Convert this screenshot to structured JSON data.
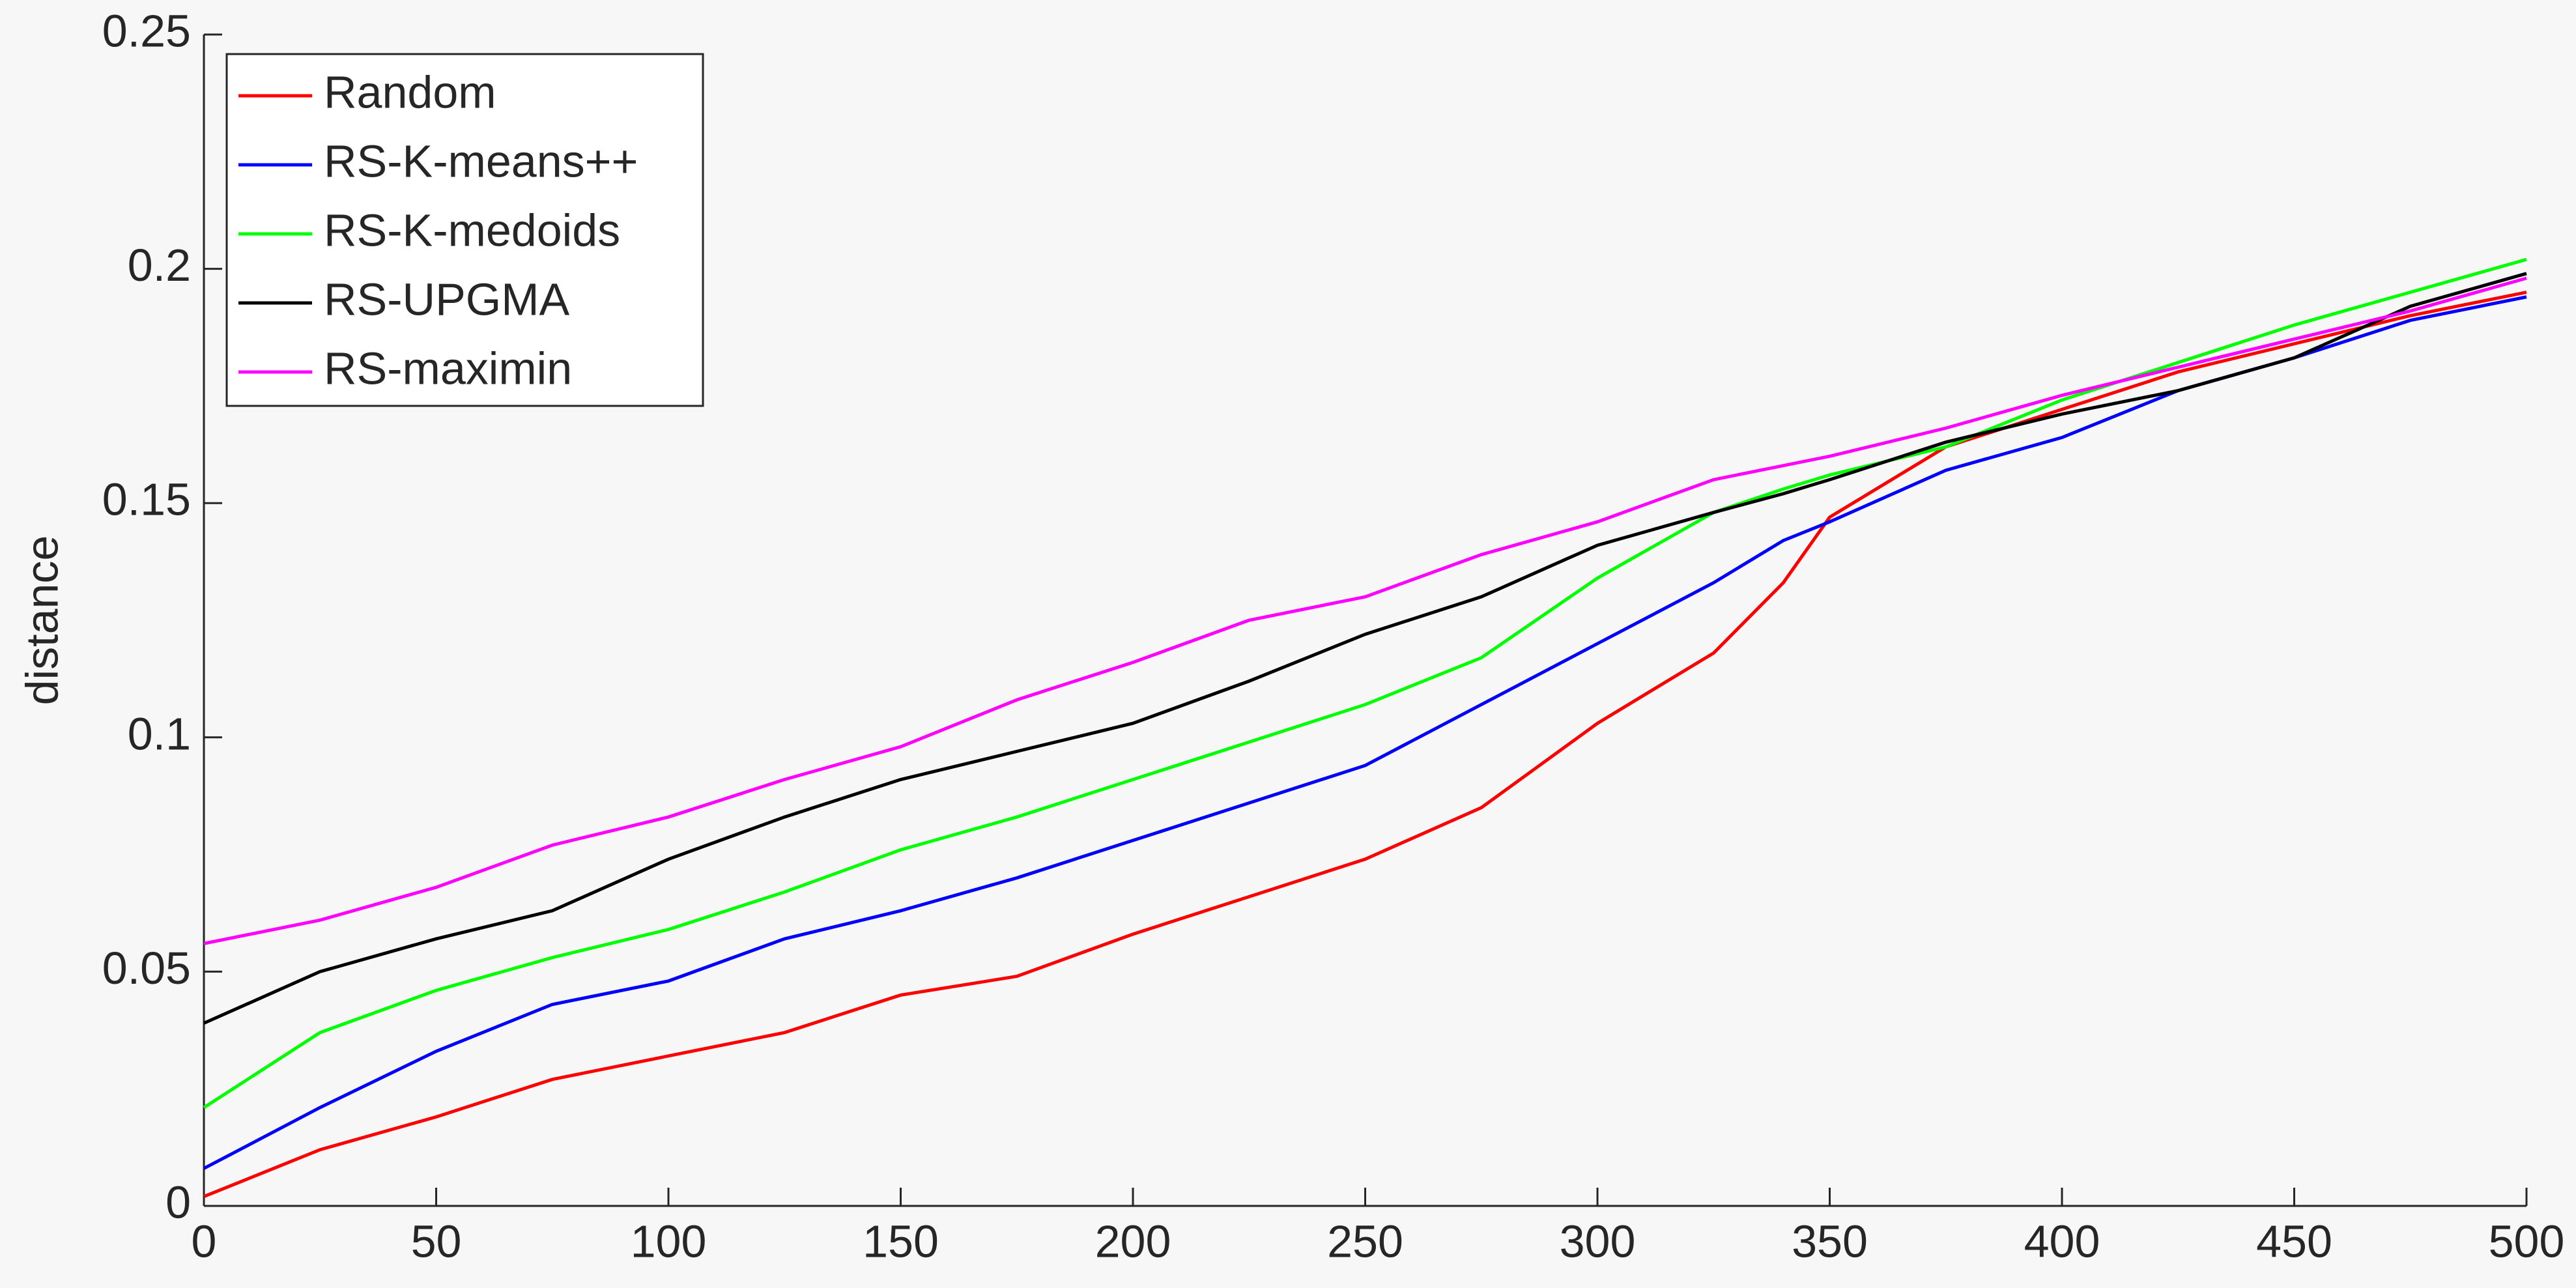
{
  "chart_data": {
    "type": "line",
    "ylabel": "distance",
    "x": [
      0,
      25,
      50,
      75,
      100,
      125,
      150,
      175,
      200,
      225,
      250,
      275,
      300,
      325,
      340,
      350,
      375,
      400,
      425,
      450,
      475,
      500
    ],
    "series": [
      {
        "name": "Random",
        "color": "#ff0000",
        "values": [
          0.002,
          0.012,
          0.019,
          0.027,
          0.032,
          0.037,
          0.045,
          0.049,
          0.058,
          0.066,
          0.074,
          0.085,
          0.103,
          0.118,
          0.133,
          0.147,
          0.162,
          0.17,
          0.178,
          0.184,
          0.19,
          0.195
        ]
      },
      {
        "name": "RS-K-means++",
        "color": "#0000ff",
        "values": [
          0.008,
          0.021,
          0.033,
          0.043,
          0.048,
          0.057,
          0.063,
          0.07,
          0.078,
          0.086,
          0.094,
          0.107,
          0.12,
          0.133,
          0.142,
          0.146,
          0.157,
          0.164,
          0.174,
          0.181,
          0.189,
          0.194
        ]
      },
      {
        "name": "RS-K-medoids",
        "color": "#00ff00",
        "values": [
          0.021,
          0.037,
          0.046,
          0.053,
          0.059,
          0.067,
          0.076,
          0.083,
          0.091,
          0.099,
          0.107,
          0.117,
          0.134,
          0.148,
          0.153,
          0.156,
          0.162,
          0.172,
          0.18,
          0.188,
          0.195,
          0.202
        ]
      },
      {
        "name": "RS-UPGMA",
        "color": "#000000",
        "values": [
          0.039,
          0.05,
          0.057,
          0.063,
          0.074,
          0.083,
          0.091,
          0.097,
          0.103,
          0.112,
          0.122,
          0.13,
          0.141,
          0.148,
          0.152,
          0.155,
          0.163,
          0.169,
          0.174,
          0.181,
          0.192,
          0.199
        ]
      },
      {
        "name": "RS-maximin",
        "color": "#ff00ff",
        "values": [
          0.056,
          0.061,
          0.068,
          0.077,
          0.083,
          0.091,
          0.098,
          0.108,
          0.116,
          0.125,
          0.13,
          0.139,
          0.146,
          0.155,
          0.158,
          0.16,
          0.166,
          0.173,
          0.179,
          0.185,
          0.191,
          0.198
        ]
      }
    ],
    "xlim": [
      0,
      500
    ],
    "xticks": [
      0,
      50,
      100,
      150,
      200,
      250,
      300,
      350,
      400,
      450,
      500
    ],
    "ylim": [
      0,
      0.25
    ],
    "yticks": [
      0,
      0.05,
      0.1,
      0.15,
      0.2,
      0.25
    ],
    "legend": "upper-left"
  }
}
